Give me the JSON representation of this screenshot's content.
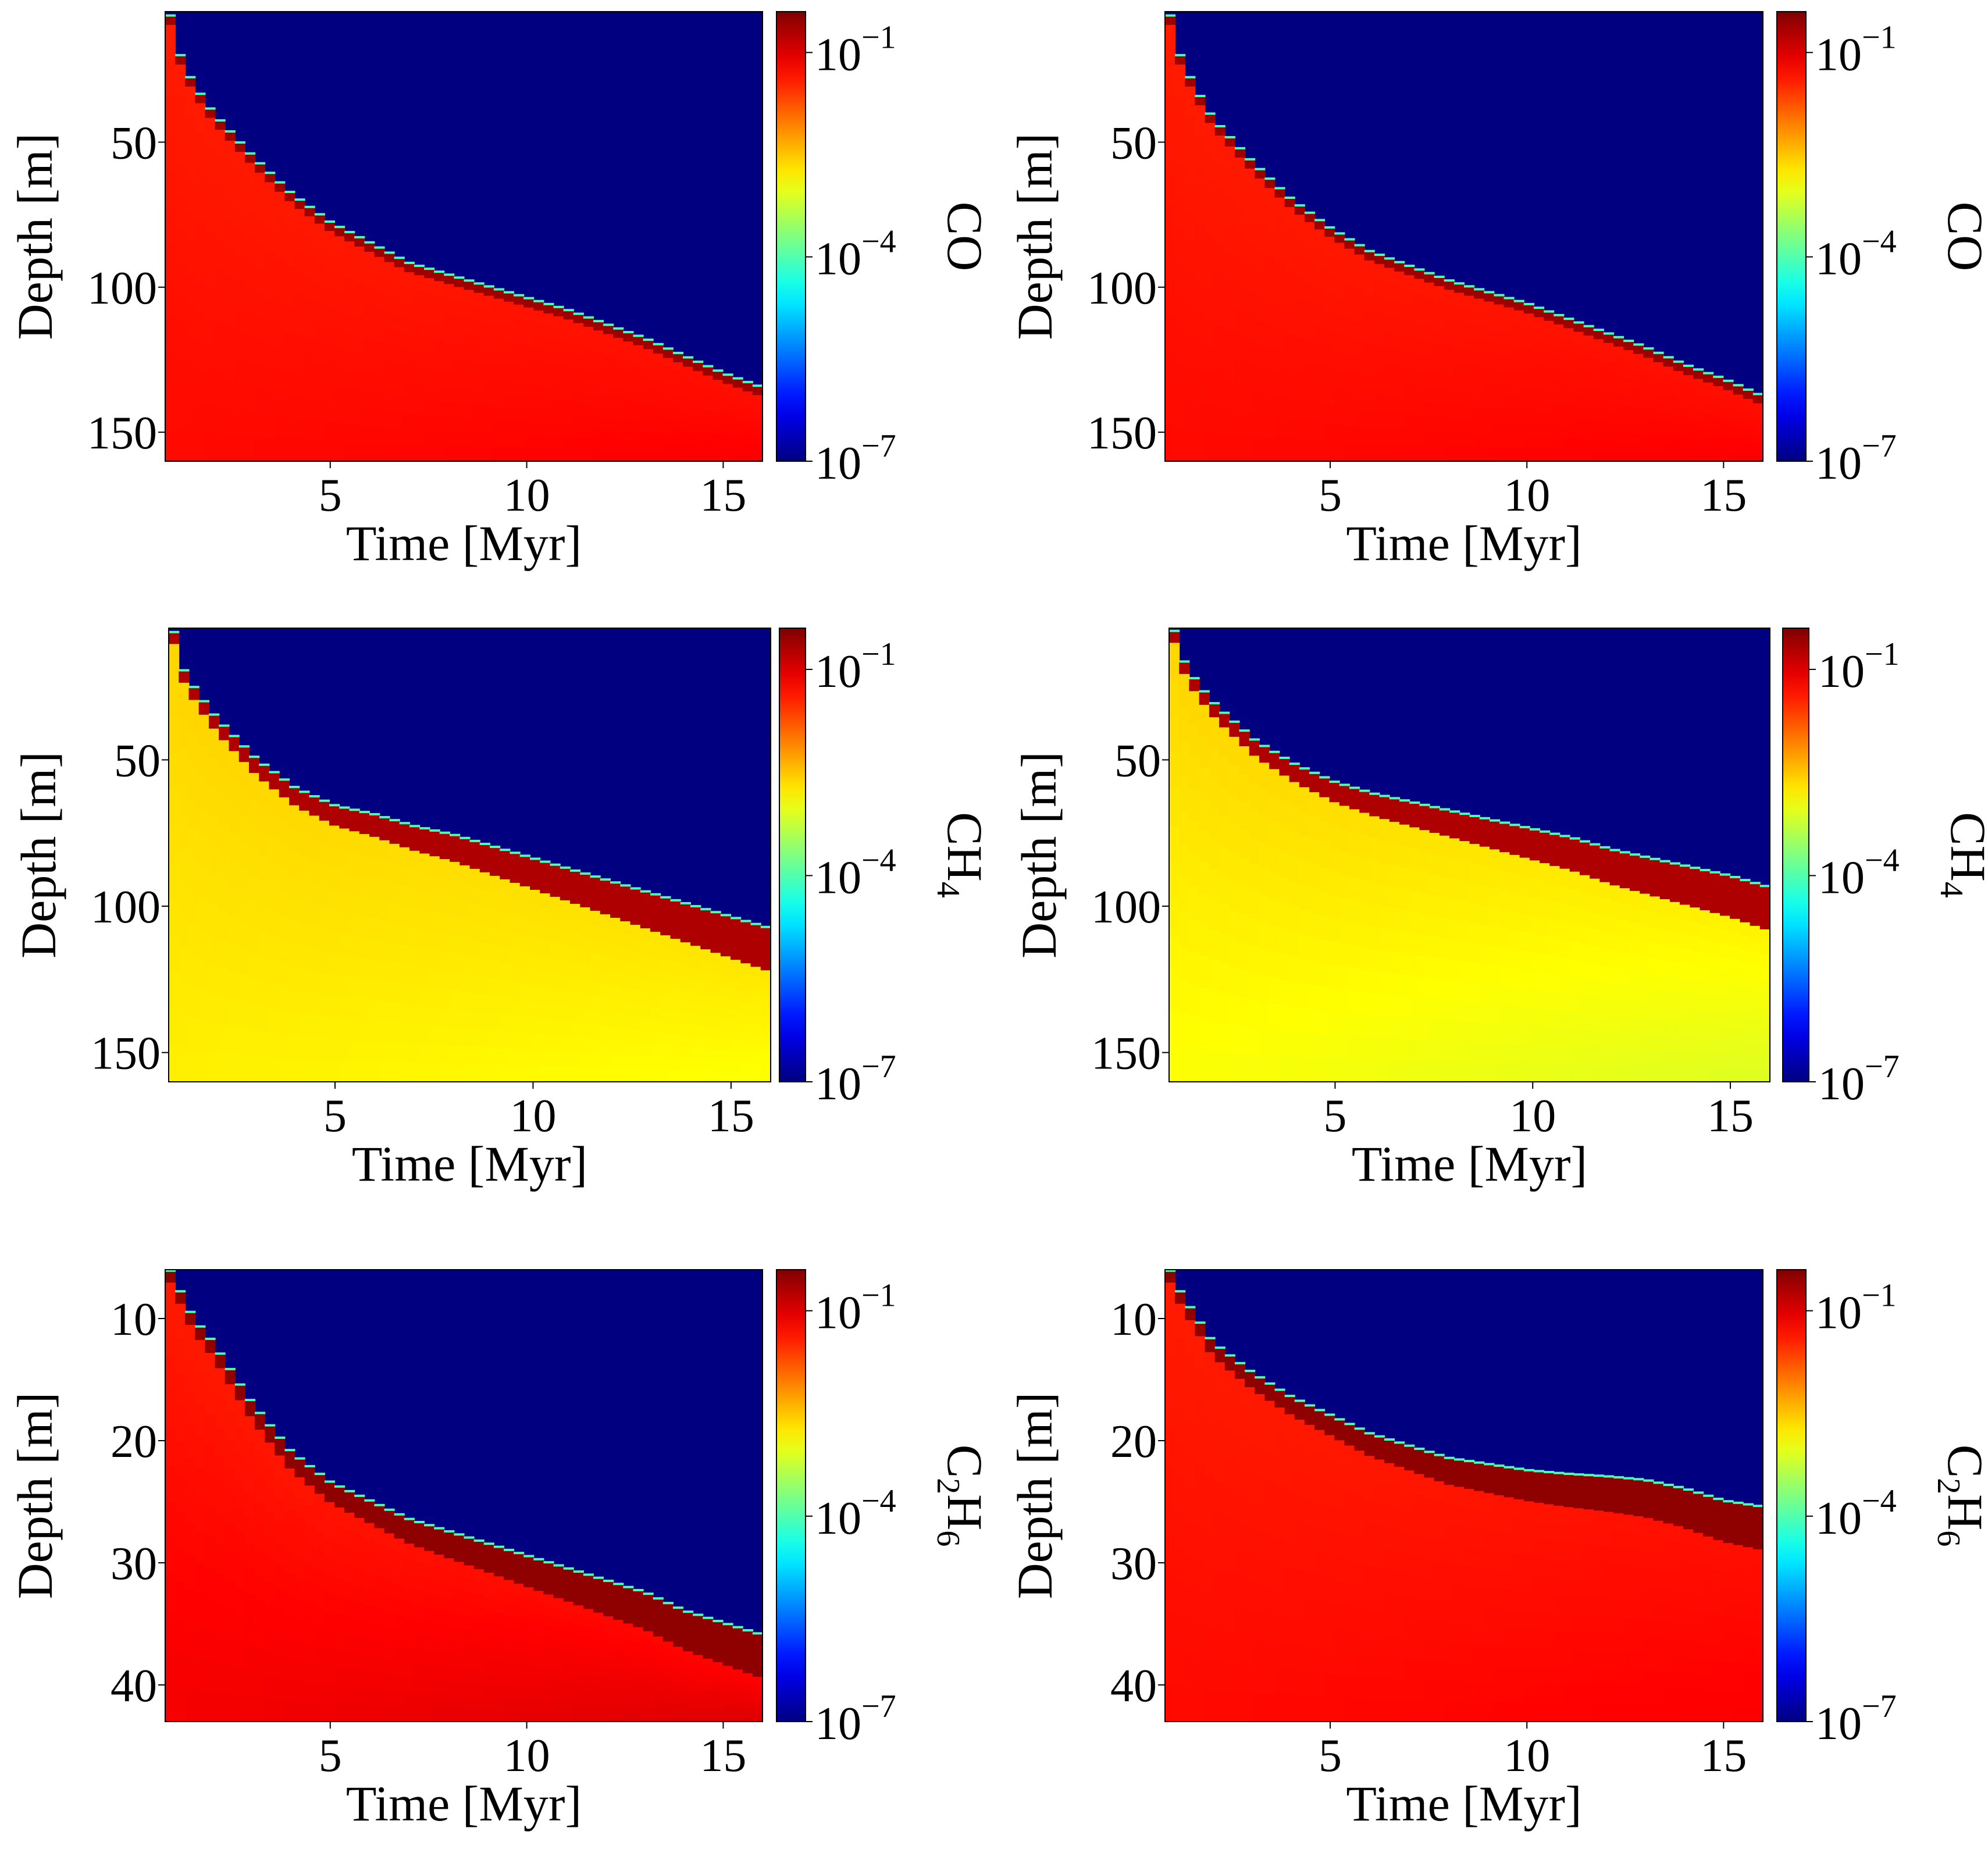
{
  "chart_data": [
    {
      "type": "heatmap",
      "panel": "top-left",
      "species": "CO",
      "cbar_label": "CO",
      "xlabel": "Time [Myr]",
      "ylabel": "Depth [m]",
      "xlim": [
        0.8,
        16
      ],
      "ylim": [
        160,
        5
      ],
      "x_ticks": [
        5,
        10,
        15
      ],
      "y_ticks": [
        50,
        100,
        150
      ],
      "cbar_range_log10": [
        -7,
        -0.4
      ],
      "cbar_ticks": [
        {
          "base": "10",
          "exp": "−1",
          "value": -1
        },
        {
          "base": "10",
          "exp": "−4",
          "value": -4
        },
        {
          "base": "10",
          "exp": "−7",
          "value": -7
        }
      ],
      "front": [
        [
          0.9,
          5
        ],
        [
          1.1,
          18
        ],
        [
          1.5,
          30
        ],
        [
          2.0,
          40
        ],
        [
          3.0,
          55
        ],
        [
          4.0,
          68
        ],
        [
          5.0,
          78
        ],
        [
          6.0,
          85
        ],
        [
          7.0,
          92
        ],
        [
          8.0,
          96
        ],
        [
          9.0,
          100
        ],
        [
          10.0,
          104
        ],
        [
          11.0,
          108
        ],
        [
          12.0,
          113
        ],
        [
          13.0,
          118
        ],
        [
          14.0,
          124
        ],
        [
          15.0,
          130
        ],
        [
          16.0,
          135
        ]
      ],
      "below_front_log10": -1.4,
      "deep_log10": -1.2,
      "front_band_log10": -0.6,
      "above_front_log10": -7
    },
    {
      "type": "heatmap",
      "panel": "top-right",
      "species": "CO",
      "cbar_label": "CO",
      "xlabel": "Time [Myr]",
      "ylabel": "Depth [m]",
      "xlim": [
        0.8,
        16
      ],
      "ylim": [
        160,
        5
      ],
      "x_ticks": [
        5,
        10,
        15
      ],
      "y_ticks": [
        50,
        100,
        150
      ],
      "cbar_range_log10": [
        -7,
        -0.4
      ],
      "cbar_ticks": [
        {
          "base": "10",
          "exp": "−1",
          "value": -1
        },
        {
          "base": "10",
          "exp": "−4",
          "value": -4
        },
        {
          "base": "10",
          "exp": "−7",
          "value": -7
        }
      ],
      "front": [
        [
          0.9,
          5
        ],
        [
          1.1,
          18
        ],
        [
          1.5,
          30
        ],
        [
          2.0,
          42
        ],
        [
          3.0,
          57
        ],
        [
          4.0,
          70
        ],
        [
          5.0,
          80
        ],
        [
          6.0,
          88
        ],
        [
          7.0,
          93
        ],
        [
          8.0,
          98
        ],
        [
          9.0,
          102
        ],
        [
          10.0,
          106
        ],
        [
          11.0,
          111
        ],
        [
          12.0,
          116
        ],
        [
          13.0,
          121
        ],
        [
          14.0,
          127
        ],
        [
          15.0,
          132
        ],
        [
          16.0,
          138
        ]
      ],
      "below_front_log10": -1.4,
      "deep_log10": -1.2,
      "front_band_log10": -0.6,
      "above_front_log10": -7
    },
    {
      "type": "heatmap",
      "panel": "middle-left",
      "species": "CH4",
      "cbar_label": "CH",
      "cbar_label_sub": "4",
      "xlabel": "Time [Myr]",
      "ylabel": "Depth [m]",
      "xlim": [
        0.8,
        16
      ],
      "ylim": [
        160,
        5
      ],
      "x_ticks": [
        5,
        10,
        15
      ],
      "y_ticks": [
        50,
        100,
        150
      ],
      "cbar_range_log10": [
        -7,
        -0.4
      ],
      "cbar_ticks": [
        {
          "base": "10",
          "exp": "−1",
          "value": -1
        },
        {
          "base": "10",
          "exp": "−4",
          "value": -4
        },
        {
          "base": "10",
          "exp": "−7",
          "value": -7
        }
      ],
      "front": [
        [
          0.9,
          5
        ],
        [
          1.1,
          18
        ],
        [
          1.5,
          27
        ],
        [
          2.0,
          36
        ],
        [
          3.0,
          50
        ],
        [
          4.0,
          60
        ],
        [
          5.0,
          66
        ],
        [
          6.0,
          69
        ],
        [
          7.0,
          73
        ],
        [
          8.0,
          76
        ],
        [
          9.0,
          80
        ],
        [
          10.0,
          84
        ],
        [
          11.0,
          88
        ],
        [
          12.0,
          92
        ],
        [
          13.0,
          96
        ],
        [
          14.0,
          100
        ],
        [
          15.0,
          104
        ],
        [
          16.0,
          108
        ]
      ],
      "below_front_log10": -2.6,
      "deep_log10": -2.9,
      "front_band_log10": -0.7,
      "above_front_log10": -7
    },
    {
      "type": "heatmap",
      "panel": "middle-right",
      "species": "CH4",
      "cbar_label": "CH",
      "cbar_label_sub": "4",
      "xlabel": "Time [Myr]",
      "ylabel": "Depth [m]",
      "xlim": [
        0.8,
        16
      ],
      "ylim": [
        160,
        5
      ],
      "x_ticks": [
        5,
        10,
        15
      ],
      "y_ticks": [
        50,
        100,
        150
      ],
      "cbar_range_log10": [
        -7,
        -0.4
      ],
      "cbar_ticks": [
        {
          "base": "10",
          "exp": "−1",
          "value": -1
        },
        {
          "base": "10",
          "exp": "−4",
          "value": -4
        },
        {
          "base": "10",
          "exp": "−7",
          "value": -7
        }
      ],
      "front": [
        [
          0.9,
          5
        ],
        [
          1.1,
          15
        ],
        [
          1.5,
          24
        ],
        [
          2.0,
          32
        ],
        [
          3.0,
          44
        ],
        [
          4.0,
          52
        ],
        [
          5.0,
          58
        ],
        [
          6.0,
          62
        ],
        [
          7.0,
          65
        ],
        [
          8.0,
          68
        ],
        [
          9.0,
          71
        ],
        [
          10.0,
          74
        ],
        [
          11.0,
          77
        ],
        [
          12.0,
          81
        ],
        [
          13.0,
          84
        ],
        [
          14.0,
          87
        ],
        [
          15.0,
          90
        ],
        [
          16.0,
          94
        ]
      ],
      "below_front_log10": -2.6,
      "deep_log10": -3.1,
      "front_band_log10": -0.7,
      "above_front_log10": -7
    },
    {
      "type": "heatmap",
      "panel": "bottom-left",
      "species": "C2H6",
      "cbar_label": "C",
      "cbar_label_sub": "2",
      "cbar_label_2": "H",
      "cbar_label_sub_2": "6",
      "xlabel": "Time [Myr]",
      "ylabel": "Depth [m]",
      "xlim": [
        0.8,
        16
      ],
      "ylim": [
        43,
        6
      ],
      "x_ticks": [
        5,
        10,
        15
      ],
      "y_ticks": [
        10,
        20,
        30,
        40
      ],
      "cbar_range_log10": [
        -7,
        -0.4
      ],
      "cbar_ticks": [
        {
          "base": "10",
          "exp": "−1",
          "value": -1
        },
        {
          "base": "10",
          "exp": "−4",
          "value": -4
        },
        {
          "base": "10",
          "exp": "−7",
          "value": -7
        }
      ],
      "front": [
        [
          0.9,
          6
        ],
        [
          1.2,
          8
        ],
        [
          1.5,
          10
        ],
        [
          2.0,
          12
        ],
        [
          3.0,
          17
        ],
        [
          4.0,
          21
        ],
        [
          5.0,
          23.5
        ],
        [
          6.0,
          25
        ],
        [
          7.0,
          26.5
        ],
        [
          8.0,
          27.5
        ],
        [
          9.0,
          28.5
        ],
        [
          10.0,
          29.5
        ],
        [
          11.0,
          30.5
        ],
        [
          12.0,
          31.5
        ],
        [
          13.0,
          32.5
        ],
        [
          14.0,
          34
        ],
        [
          15.0,
          35
        ],
        [
          16.0,
          36
        ]
      ],
      "below_front_log10": -1.4,
      "deep_log10": -1.0,
      "front_band_log10": -0.5,
      "above_front_log10": -7
    },
    {
      "type": "heatmap",
      "panel": "bottom-right",
      "species": "C2H6",
      "cbar_label": "C",
      "cbar_label_sub": "2",
      "cbar_label_2": "H",
      "cbar_label_sub_2": "6",
      "xlabel": "Time [Myr]",
      "ylabel": "Depth [m]",
      "xlim": [
        0.8,
        16
      ],
      "ylim": [
        43,
        6
      ],
      "x_ticks": [
        5,
        10,
        15
      ],
      "y_ticks": [
        10,
        20,
        30,
        40
      ],
      "cbar_range_log10": [
        -7,
        -0.4
      ],
      "cbar_ticks": [
        {
          "base": "10",
          "exp": "−1",
          "value": -1
        },
        {
          "base": "10",
          "exp": "−4",
          "value": -4
        },
        {
          "base": "10",
          "exp": "−7",
          "value": -7
        }
      ],
      "front": [
        [
          0.9,
          6
        ],
        [
          1.2,
          8
        ],
        [
          1.6,
          10
        ],
        [
          2.0,
          12
        ],
        [
          3.0,
          14.5
        ],
        [
          4.0,
          16.5
        ],
        [
          5.0,
          18
        ],
        [
          6.0,
          19.5
        ],
        [
          7.0,
          20.5
        ],
        [
          8.0,
          21.5
        ],
        [
          9.0,
          22
        ],
        [
          10.0,
          22.5
        ],
        [
          11.0,
          22.8
        ],
        [
          12.0,
          23
        ],
        [
          13.0,
          23.3
        ],
        [
          14.0,
          24
        ],
        [
          15.0,
          25
        ],
        [
          16.0,
          25.5
        ]
      ],
      "below_front_log10": -1.4,
      "deep_log10": -1.2,
      "front_band_log10": -0.5,
      "above_front_log10": -7
    }
  ]
}
